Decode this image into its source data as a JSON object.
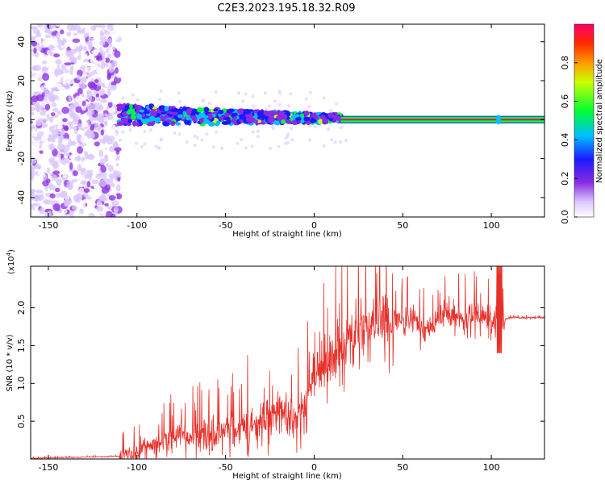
{
  "title": "C2E3.2023.195.18.32.R09",
  "chart_data": [
    {
      "type": "heatmap",
      "xlabel": "Height of straight line (km)",
      "ylabel": "Frequency (Hz)",
      "xlim": [
        -160,
        130
      ],
      "ylim": [
        -50,
        49
      ],
      "xticks": [
        -150,
        -100,
        -50,
        0,
        50,
        100
      ],
      "xtick_labels": [
        "-150",
        "-100",
        "-50",
        "0",
        "50",
        "100"
      ],
      "yticks": [
        -40,
        -20,
        0,
        20,
        40
      ],
      "ytick_labels": [
        "-40",
        "-20",
        "0",
        "20",
        "40"
      ],
      "description_regions": [
        {
          "x_range": [
            -160,
            -110
          ],
          "f_range": [
            -50,
            49
          ],
          "amplitude": 0.1
        },
        {
          "x_range": [
            -110,
            15
          ],
          "f_range": [
            -6,
            7
          ],
          "amplitude": 0.35
        },
        {
          "x_range": [
            15,
            130
          ],
          "f_range": [
            -1.5,
            1.5
          ],
          "amplitude": 0.95
        }
      ],
      "colorbar": {
        "label": "Normalized spectral amplitude",
        "ticks": [
          0.0,
          0.2,
          0.4,
          0.6,
          0.8
        ],
        "tick_labels": [
          "0.0",
          "0.2",
          "0.4",
          "0.6",
          "0.8"
        ],
        "range": [
          0,
          1
        ],
        "colormap": [
          "#ffffff",
          "#c8a8ff",
          "#6600ff",
          "#0000ff",
          "#00ccff",
          "#00ff66",
          "#ccff00",
          "#ffaa00",
          "#ff3300",
          "#ff0077"
        ]
      }
    },
    {
      "type": "line",
      "xlabel": "Height of straight line (km)",
      "ylabel": "SNR (10 * v/v)",
      "multiplier_label": "(x10",
      "multiplier_exp": "4",
      "multiplier_close": ")",
      "xlim": [
        -160,
        130
      ],
      "ylim": [
        0,
        2.55
      ],
      "xticks": [
        -150,
        -100,
        -50,
        0,
        50,
        100
      ],
      "xtick_labels": [
        "-150",
        "-100",
        "-50",
        "0",
        "50",
        "100"
      ],
      "yticks": [
        0.5,
        1.0,
        1.5,
        2.0
      ],
      "ytick_labels": [
        "0.5",
        "1.0",
        "1.5",
        "2.0"
      ],
      "series": [
        {
          "color": "#e8302a",
          "x": [
            -160,
            -140,
            -120,
            -110,
            -105,
            -100,
            -95,
            -90,
            -85,
            -80,
            -75,
            -70,
            -65,
            -60,
            -55,
            -50,
            -45,
            -40,
            -35,
            -30,
            -25,
            -20,
            -15,
            -10,
            -5,
            0,
            5,
            10,
            15,
            20,
            25,
            30,
            35,
            40,
            45,
            50,
            55,
            60,
            65,
            70,
            75,
            80,
            85,
            90,
            95,
            100,
            103,
            105,
            110,
            120,
            130
          ],
          "y": [
            0.01,
            0.02,
            0.03,
            0.04,
            0.06,
            0.1,
            0.15,
            0.2,
            0.25,
            0.3,
            0.33,
            0.32,
            0.3,
            0.3,
            0.35,
            0.4,
            0.3,
            0.45,
            0.5,
            0.5,
            0.5,
            0.65,
            0.6,
            0.55,
            0.75,
            1.05,
            1.25,
            1.35,
            1.45,
            1.6,
            1.65,
            1.75,
            1.78,
            1.8,
            1.85,
            1.88,
            1.86,
            1.75,
            1.7,
            1.85,
            1.9,
            1.9,
            1.88,
            1.9,
            1.9,
            1.85,
            1.8,
            1.82,
            1.87,
            1.87,
            1.87
          ]
        }
      ]
    }
  ]
}
